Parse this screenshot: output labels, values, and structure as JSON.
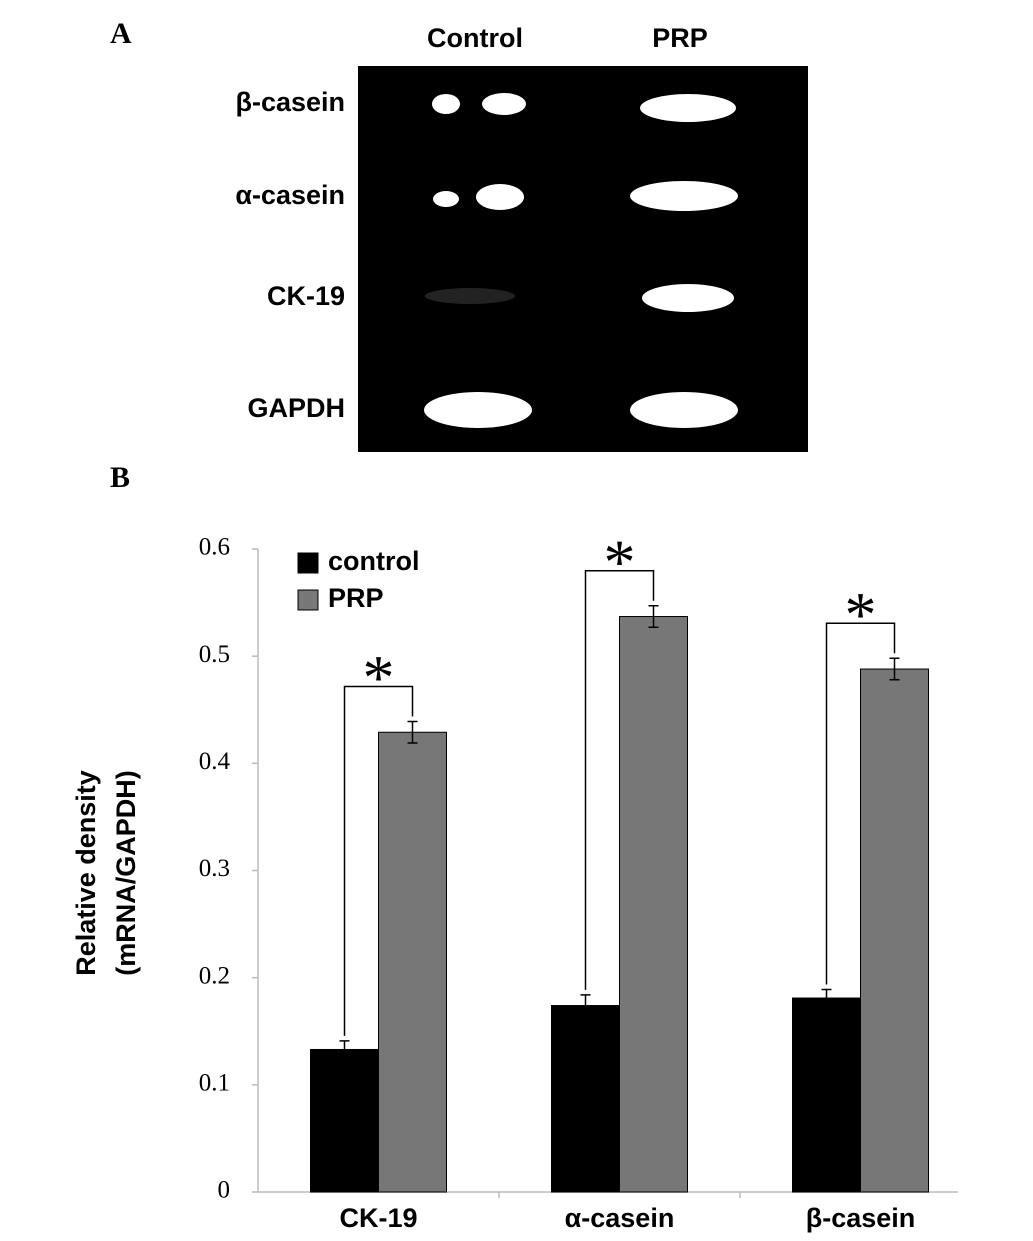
{
  "panels": {
    "a": "A",
    "b": "B"
  },
  "gel": {
    "columns": [
      "Control",
      "PRP"
    ],
    "rows": [
      "β-casein",
      "α-casein",
      "CK-19",
      "GAPDH"
    ]
  },
  "chart_data": {
    "type": "bar",
    "y_label": [
      "Relative density",
      "(mRNA/GAPDH)"
    ],
    "categories": [
      "CK-19",
      "α-casein",
      "β-casein"
    ],
    "series": [
      {
        "name": "control",
        "color": "#000000",
        "values": [
          0.133,
          0.174,
          0.181
        ],
        "errors": [
          0.008,
          0.01,
          0.008
        ]
      },
      {
        "name": "PRP",
        "color": "#777777",
        "values": [
          0.429,
          0.537,
          0.488
        ],
        "errors": [
          0.01,
          0.01,
          0.01
        ]
      }
    ],
    "annotations": [
      "*",
      "*",
      "*"
    ],
    "ylim": [
      0,
      0.6
    ],
    "yticks": [
      0,
      0.1,
      0.2,
      0.3,
      0.4,
      0.5,
      0.6
    ],
    "legend": "upper left"
  }
}
